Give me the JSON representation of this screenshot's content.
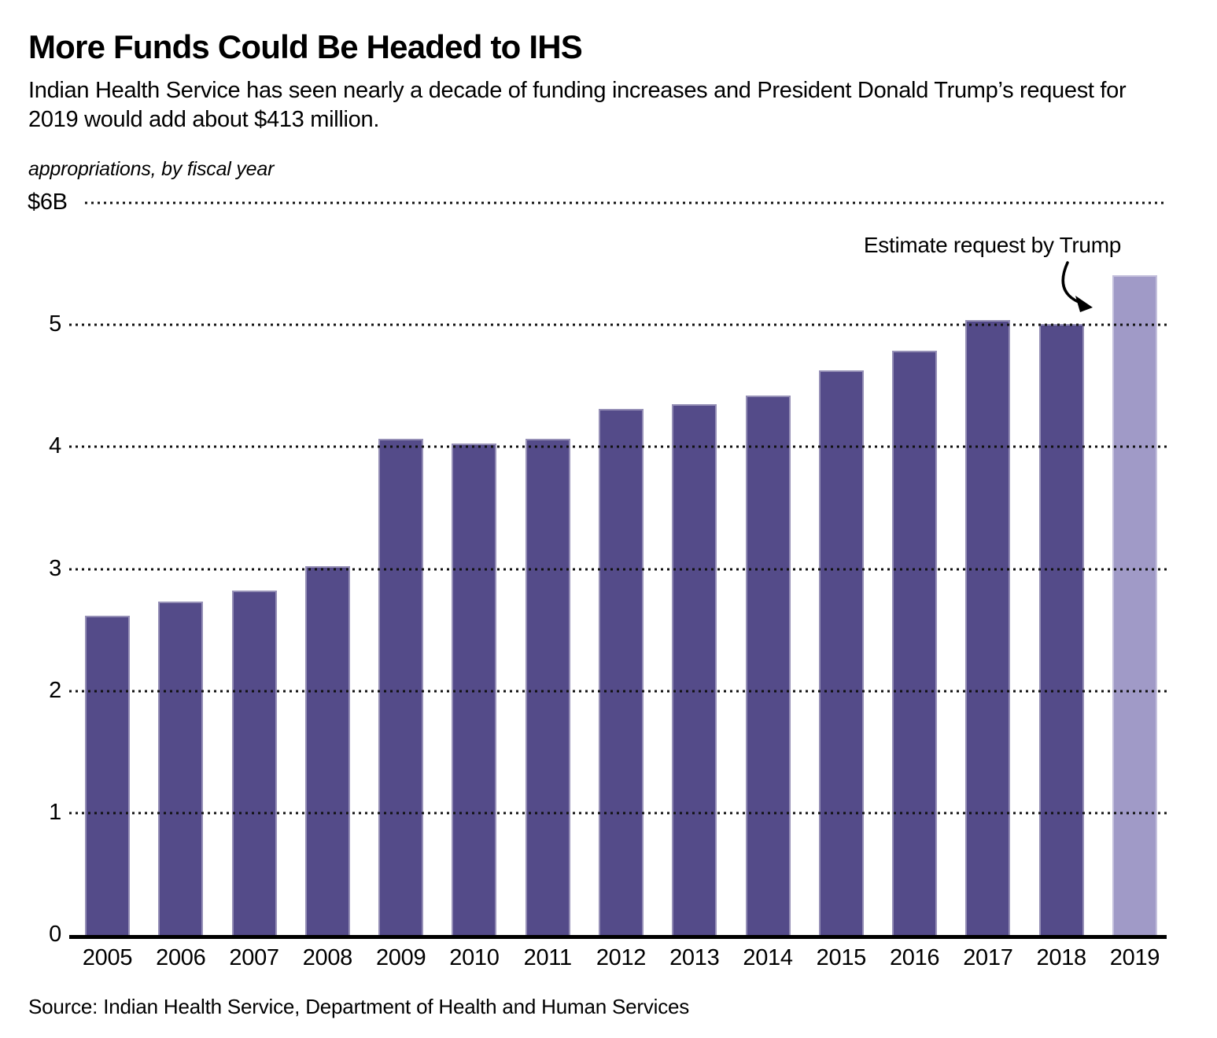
{
  "header": {
    "title": "More Funds Could Be Headed to IHS",
    "subtitle": "Indian Health Service has seen nearly a decade of funding increases and President Donald Trump’s request for 2019 would add about $413 million."
  },
  "chart_data": {
    "type": "bar",
    "title": "More Funds Could Be Headed to IHS",
    "unit_note": "appropriations, by fiscal year",
    "categories": [
      "2005",
      "2006",
      "2007",
      "2008",
      "2009",
      "2010",
      "2011",
      "2012",
      "2013",
      "2014",
      "2015",
      "2016",
      "2017",
      "2018",
      "2019"
    ],
    "values": [
      2.62,
      2.73,
      2.82,
      3.02,
      4.07,
      4.03,
      4.07,
      4.31,
      4.35,
      4.42,
      4.63,
      4.79,
      5.04,
      5.01,
      5.41
    ],
    "value_unit": "billions of dollars",
    "ylim": [
      0,
      6
    ],
    "ytick_labels": [
      "$6B",
      "5",
      "4",
      "3",
      "2",
      "1",
      "0"
    ],
    "grid": "dotted-horizontal",
    "annotation": {
      "text": "Estimate request by Trump",
      "points_to": "2019"
    },
    "highlight": {
      "category": "2019",
      "meaning": "estimate request, lighter color"
    },
    "colors": {
      "bar": "#544b89",
      "highlight_bar": "#a09ac7",
      "axis": "#000000"
    }
  },
  "source": "Source: Indian Health Service, Department of Health and Human Services"
}
